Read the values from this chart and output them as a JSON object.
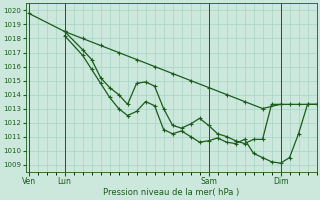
{
  "bg_color": "#cce8dc",
  "grid_color": "#a8d4c4",
  "line_color": "#1a5c1a",
  "marker_color": "#1a5c1a",
  "xlabel_text": "Pression niveau de la mer( hPa )",
  "xtick_labels": [
    "Ven",
    "Lun",
    "Sam",
    "Dim"
  ],
  "xtick_positions": [
    0,
    12,
    60,
    84
  ],
  "ylim": [
    1008.5,
    1020.5
  ],
  "yticks": [
    1009,
    1010,
    1011,
    1012,
    1013,
    1014,
    1015,
    1016,
    1017,
    1018,
    1019,
    1020
  ],
  "xlim": [
    -1,
    96
  ],
  "series1": {
    "x": [
      0,
      12,
      18,
      24,
      30,
      36,
      42,
      48,
      54,
      60,
      66,
      72,
      78,
      84
    ],
    "y": [
      1019.8,
      1018.5,
      1018.0,
      1017.5,
      1017.0,
      1016.5,
      1016.0,
      1015.5,
      1015.0,
      1014.5,
      1014.0,
      1013.5,
      1013.0,
      1013.3
    ]
  },
  "series2": {
    "x": [
      12,
      18,
      21,
      24,
      27,
      30,
      33,
      36,
      39,
      42,
      45,
      48,
      51,
      54,
      57,
      60,
      63,
      66,
      69,
      72,
      75,
      78,
      81,
      84,
      87,
      90,
      93,
      96
    ],
    "y": [
      1018.5,
      1017.2,
      1016.5,
      1015.2,
      1014.5,
      1014.0,
      1013.3,
      1014.8,
      1014.9,
      1014.6,
      1013.0,
      1011.8,
      1011.6,
      1011.9,
      1012.3,
      1011.8,
      1011.2,
      1011.0,
      1010.7,
      1010.5,
      1010.8,
      1010.8,
      1013.3,
      1013.3,
      1013.3,
      1013.3,
      1013.3,
      1013.3
    ]
  },
  "series3": {
    "x": [
      12,
      18,
      21,
      24,
      27,
      30,
      33,
      36,
      39,
      42,
      45,
      48,
      51,
      54,
      57,
      60,
      63,
      66,
      69,
      72,
      75,
      78,
      81,
      84,
      87,
      90,
      93,
      96
    ],
    "y": [
      1018.2,
      1016.8,
      1015.8,
      1014.8,
      1013.8,
      1013.0,
      1012.5,
      1012.8,
      1013.5,
      1013.2,
      1011.5,
      1011.2,
      1011.4,
      1011.0,
      1010.6,
      1010.7,
      1010.9,
      1010.6,
      1010.5,
      1010.8,
      1009.8,
      1009.5,
      1009.2,
      1009.1,
      1009.5,
      1011.2,
      1013.3,
      1013.3
    ]
  }
}
